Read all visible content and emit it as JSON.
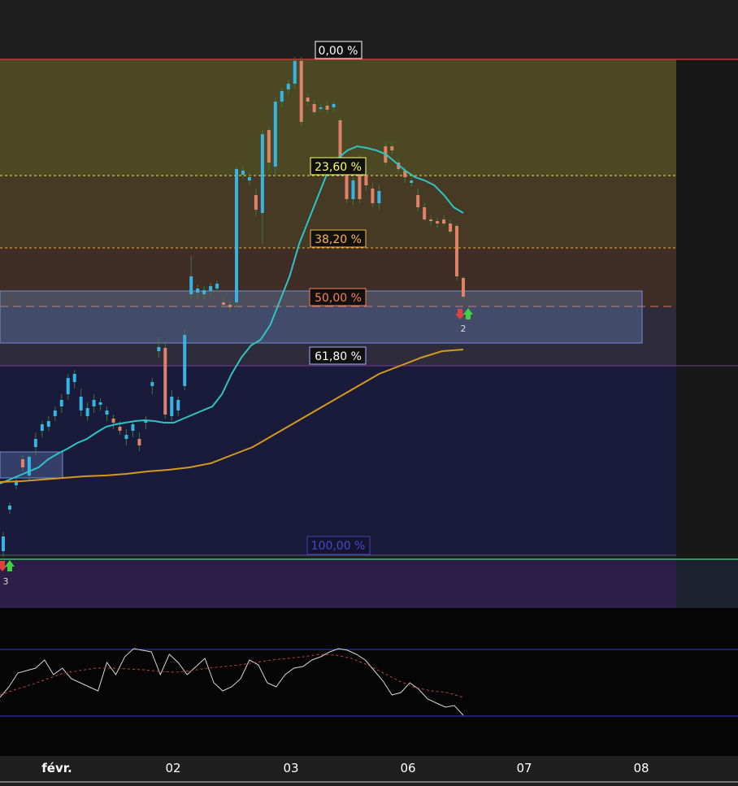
{
  "chart_data": {
    "type": "candlestick",
    "fib_levels": [
      {
        "label": "0,00 %",
        "color": "#ffffff",
        "border": "#ffffff",
        "line": "#e23a3a"
      },
      {
        "label": "23,60 %",
        "color": "#ffff66",
        "border": "#ffff66",
        "line": "#e8e836"
      },
      {
        "label": "38,20 %",
        "color": "#ffb347",
        "border": "#ffb347",
        "line": "#f0b030"
      },
      {
        "label": "50,00 %",
        "color": "#ff7f50",
        "border": "#ff7f50",
        "line": "#e07050"
      },
      {
        "label": "61,80 %",
        "color": "#ffffff",
        "border": "#a0b4ff",
        "line": "#7a3a9a"
      },
      {
        "label": "100,00 %",
        "color": "#4040c0",
        "border": "#4040c0",
        "line": "#444466"
      }
    ],
    "x_tick_labels": [
      "févr.",
      "02",
      "03",
      "06",
      "07",
      "08"
    ],
    "signal_markers": [
      {
        "label": "3",
        "position": "start"
      },
      {
        "label": "2",
        "position": "end"
      }
    ],
    "candles": [
      [
        678,
        660,
        685,
        655
      ],
      [
        627,
        622,
        632,
        618
      ],
      [
        597,
        592,
        602,
        588
      ],
      [
        565,
        575,
        580,
        560
      ],
      [
        585,
        562,
        590,
        560
      ],
      [
        550,
        540,
        560,
        532
      ],
      [
        530,
        522,
        538,
        518
      ],
      [
        525,
        518,
        530,
        512
      ],
      [
        512,
        505,
        518,
        500
      ],
      [
        500,
        492,
        508,
        485
      ],
      [
        485,
        465,
        492,
        460
      ],
      [
        470,
        460,
        478,
        455
      ],
      [
        505,
        488,
        512,
        478
      ],
      [
        512,
        502,
        518,
        495
      ],
      [
        500,
        492,
        508,
        485
      ],
      [
        498,
        495,
        505,
        490
      ],
      [
        510,
        505,
        518,
        500
      ],
      [
        515,
        520,
        528,
        510
      ],
      [
        525,
        530,
        535,
        518
      ],
      [
        540,
        535,
        548,
        528
      ],
      [
        530,
        522,
        538,
        518
      ],
      [
        540,
        548,
        555,
        532
      ],
      [
        520,
        518,
        528,
        512
      ],
      [
        475,
        470,
        485,
        465
      ],
      [
        432,
        427,
        440,
        415
      ],
      [
        428,
        510,
        515,
        420
      ],
      [
        512,
        488,
        518,
        480
      ],
      [
        505,
        492,
        512,
        488
      ],
      [
        475,
        412,
        480,
        405
      ],
      [
        362,
        340,
        368,
        315
      ],
      [
        360,
        355,
        368,
        350
      ],
      [
        362,
        357,
        368,
        352
      ],
      [
        358,
        352,
        365,
        348
      ],
      [
        355,
        349,
        360,
        345
      ],
      [
        372,
        375,
        380,
        365
      ],
      [
        375,
        378,
        383,
        370
      ],
      [
        372,
        208,
        378,
        205
      ],
      [
        215,
        210,
        220,
        205
      ],
      [
        222,
        218,
        228,
        212
      ],
      [
        240,
        258,
        265,
        232
      ],
      [
        262,
        165,
        300,
        160
      ],
      [
        160,
        200,
        210,
        155
      ],
      [
        205,
        125,
        215,
        120
      ],
      [
        125,
        112,
        132,
        108
      ],
      [
        110,
        103,
        118,
        98
      ],
      [
        103,
        75,
        110,
        70
      ],
      [
        75,
        150,
        155,
        70
      ],
      [
        120,
        125,
        130,
        115
      ],
      [
        128,
        138,
        142,
        122
      ],
      [
        133,
        132,
        138,
        128
      ],
      [
        130,
        135,
        140,
        125
      ],
      [
        132,
        128,
        138,
        125
      ],
      [
        148,
        195,
        200,
        145
      ],
      [
        200,
        245,
        250,
        195
      ],
      [
        245,
        222,
        252,
        218
      ],
      [
        195,
        245,
        250,
        190
      ],
      [
        215,
        228,
        235,
        205
      ],
      [
        232,
        250,
        255,
        225
      ],
      [
        250,
        235,
        258,
        228
      ],
      [
        180,
        200,
        205,
        175
      ],
      [
        180,
        185,
        190,
        175
      ],
      [
        200,
        208,
        212,
        195
      ],
      [
        210,
        218,
        225,
        205
      ],
      [
        225,
        222,
        230,
        218
      ],
      [
        240,
        255,
        260,
        232
      ],
      [
        255,
        270,
        272,
        250
      ],
      [
        270,
        272,
        278,
        265
      ],
      [
        272,
        275,
        280,
        268
      ],
      [
        270,
        275,
        278,
        265
      ],
      [
        275,
        285,
        288,
        270
      ],
      [
        278,
        340,
        345,
        275
      ],
      [
        342,
        365,
        368,
        340
      ]
    ],
    "ema_fast": [
      595,
      590,
      585,
      580,
      575,
      565,
      558,
      552,
      545,
      540,
      532,
      525,
      522,
      520,
      518,
      517,
      518,
      520,
      520,
      515,
      510,
      505,
      500,
      485,
      460,
      440,
      425,
      418,
      400,
      370,
      340,
      300,
      270,
      240,
      210,
      195,
      185,
      180,
      182,
      185,
      190,
      200,
      210,
      218,
      222,
      228,
      240,
      255,
      262
    ],
    "ema_slow": [
      593,
      592,
      590,
      588,
      586,
      585,
      583,
      580,
      578,
      575,
      570,
      560,
      550,
      535,
      520,
      505,
      490,
      475,
      460,
      450,
      440,
      432,
      430
    ],
    "rsi": [
      858,
      845,
      828,
      825,
      822,
      812,
      830,
      822,
      835,
      840,
      845,
      850,
      815,
      830,
      808,
      798,
      800,
      802,
      830,
      805,
      815,
      830,
      820,
      810,
      840,
      850,
      845,
      835,
      812,
      818,
      840,
      845,
      830,
      822,
      820,
      812,
      808,
      802,
      798,
      800,
      805,
      812,
      825,
      838,
      855,
      852,
      840,
      848,
      860,
      865,
      870,
      868,
      880
    ],
    "rsi_signal": [
      855,
      848,
      842,
      835,
      828,
      825,
      822,
      822,
      823,
      824,
      826,
      827,
      825,
      822,
      820,
      818,
      815,
      812,
      810,
      808,
      805,
      806,
      810,
      818,
      828,
      838,
      846,
      850,
      852,
      858
    ]
  }
}
